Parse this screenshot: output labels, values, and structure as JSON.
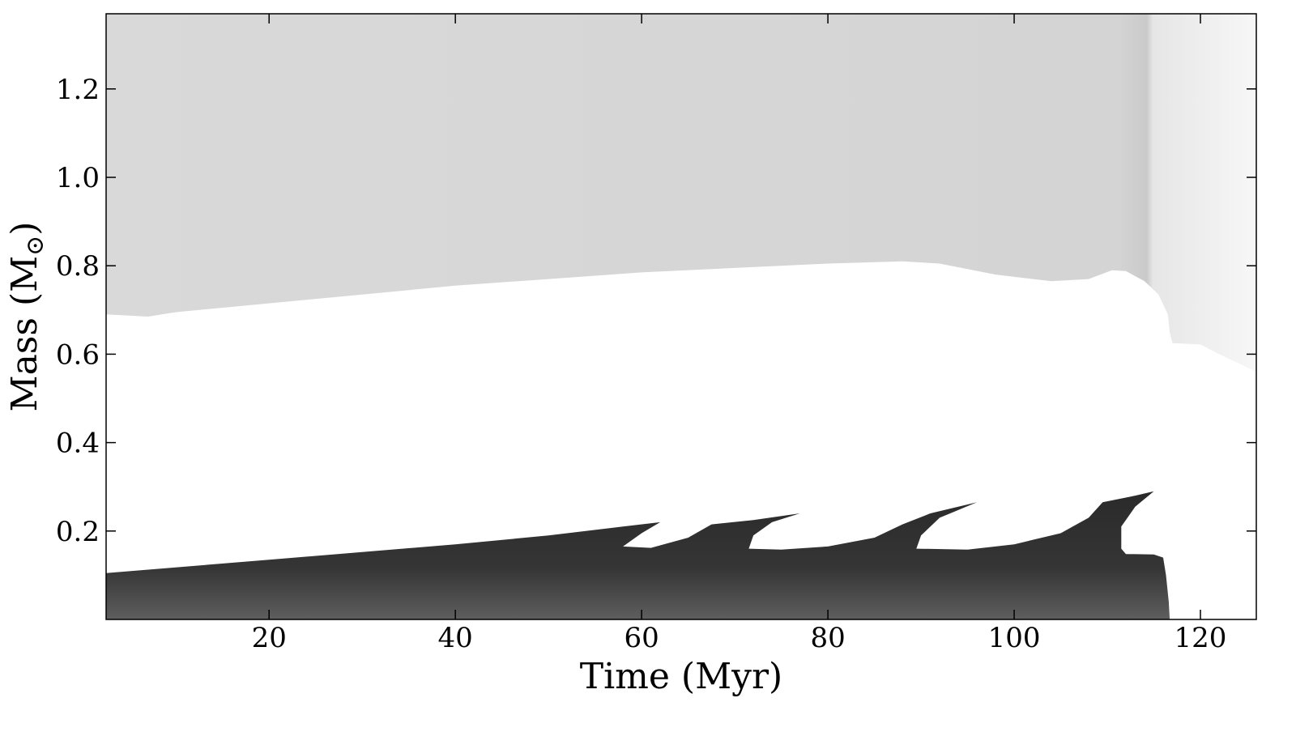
{
  "chart_data": {
    "type": "heatmap",
    "title": "",
    "xlabel": "Time (Myr)",
    "ylabel": "Mass (M",
    "ylabel_subscript": "⊙",
    "ylabel_close": ")",
    "xlim": [
      2.5,
      126
    ],
    "ylim": [
      0,
      1.37
    ],
    "x_ticks": [
      20,
      40,
      60,
      80,
      100,
      120
    ],
    "x_tick_labels": [
      "20",
      "40",
      "60",
      "80",
      "100",
      "120"
    ],
    "y_ticks": [
      0.2,
      0.4,
      0.6,
      0.8,
      1.0,
      1.2
    ],
    "y_tick_labels": [
      "0.2",
      "0.4",
      "0.6",
      "0.8",
      "1.0",
      "1.2"
    ],
    "grid": false,
    "colormap": "grayscale",
    "regions": [
      {
        "name": "outer-envelope",
        "color": "#d8d8d8",
        "top_is_axis_max": true,
        "boundary": [
          [
            2.5,
            0.69
          ],
          [
            7,
            0.685
          ],
          [
            10,
            0.695
          ],
          [
            20,
            0.715
          ],
          [
            30,
            0.735
          ],
          [
            40,
            0.755
          ],
          [
            50,
            0.77
          ],
          [
            60,
            0.785
          ],
          [
            70,
            0.795
          ],
          [
            80,
            0.805
          ],
          [
            88,
            0.81
          ],
          [
            92,
            0.805
          ],
          [
            98,
            0.78
          ],
          [
            104,
            0.765
          ],
          [
            108,
            0.77
          ],
          [
            110.5,
            0.79
          ],
          [
            112,
            0.788
          ],
          [
            114,
            0.765
          ],
          [
            115.5,
            0.735
          ],
          [
            116.5,
            0.69
          ],
          [
            116.7,
            0.65
          ],
          [
            117,
            0.625
          ],
          [
            120,
            0.622
          ],
          [
            122,
            0.6
          ],
          [
            124,
            0.58
          ],
          [
            126,
            0.56
          ]
        ]
      },
      {
        "name": "inner-core",
        "color": "#333333",
        "boundary": [
          [
            2.5,
            0.105
          ],
          [
            20,
            0.135
          ],
          [
            40,
            0.17
          ],
          [
            50,
            0.19
          ],
          [
            58,
            0.21
          ],
          [
            62,
            0.22
          ],
          [
            60,
            0.195
          ],
          [
            58,
            0.165
          ],
          [
            61,
            0.162
          ],
          [
            65,
            0.185
          ],
          [
            67.5,
            0.215
          ],
          [
            72,
            0.225
          ],
          [
            77,
            0.24
          ],
          [
            74,
            0.22
          ],
          [
            72,
            0.19
          ],
          [
            71.5,
            0.16
          ],
          [
            75,
            0.158
          ],
          [
            80,
            0.165
          ],
          [
            85,
            0.185
          ],
          [
            88,
            0.215
          ],
          [
            91,
            0.24
          ],
          [
            96,
            0.265
          ],
          [
            92,
            0.23
          ],
          [
            90,
            0.19
          ],
          [
            89.5,
            0.16
          ],
          [
            95,
            0.158
          ],
          [
            100,
            0.17
          ],
          [
            105,
            0.195
          ],
          [
            108,
            0.23
          ],
          [
            109.5,
            0.265
          ],
          [
            113,
            0.28
          ],
          [
            115,
            0.29
          ],
          [
            113,
            0.255
          ],
          [
            111.5,
            0.21
          ],
          [
            111.5,
            0.16
          ],
          [
            112,
            0.148
          ],
          [
            115,
            0.147
          ],
          [
            116,
            0.14
          ],
          [
            116.3,
            0.1
          ],
          [
            116.6,
            0.04
          ],
          [
            116.7,
            0
          ]
        ]
      }
    ]
  }
}
